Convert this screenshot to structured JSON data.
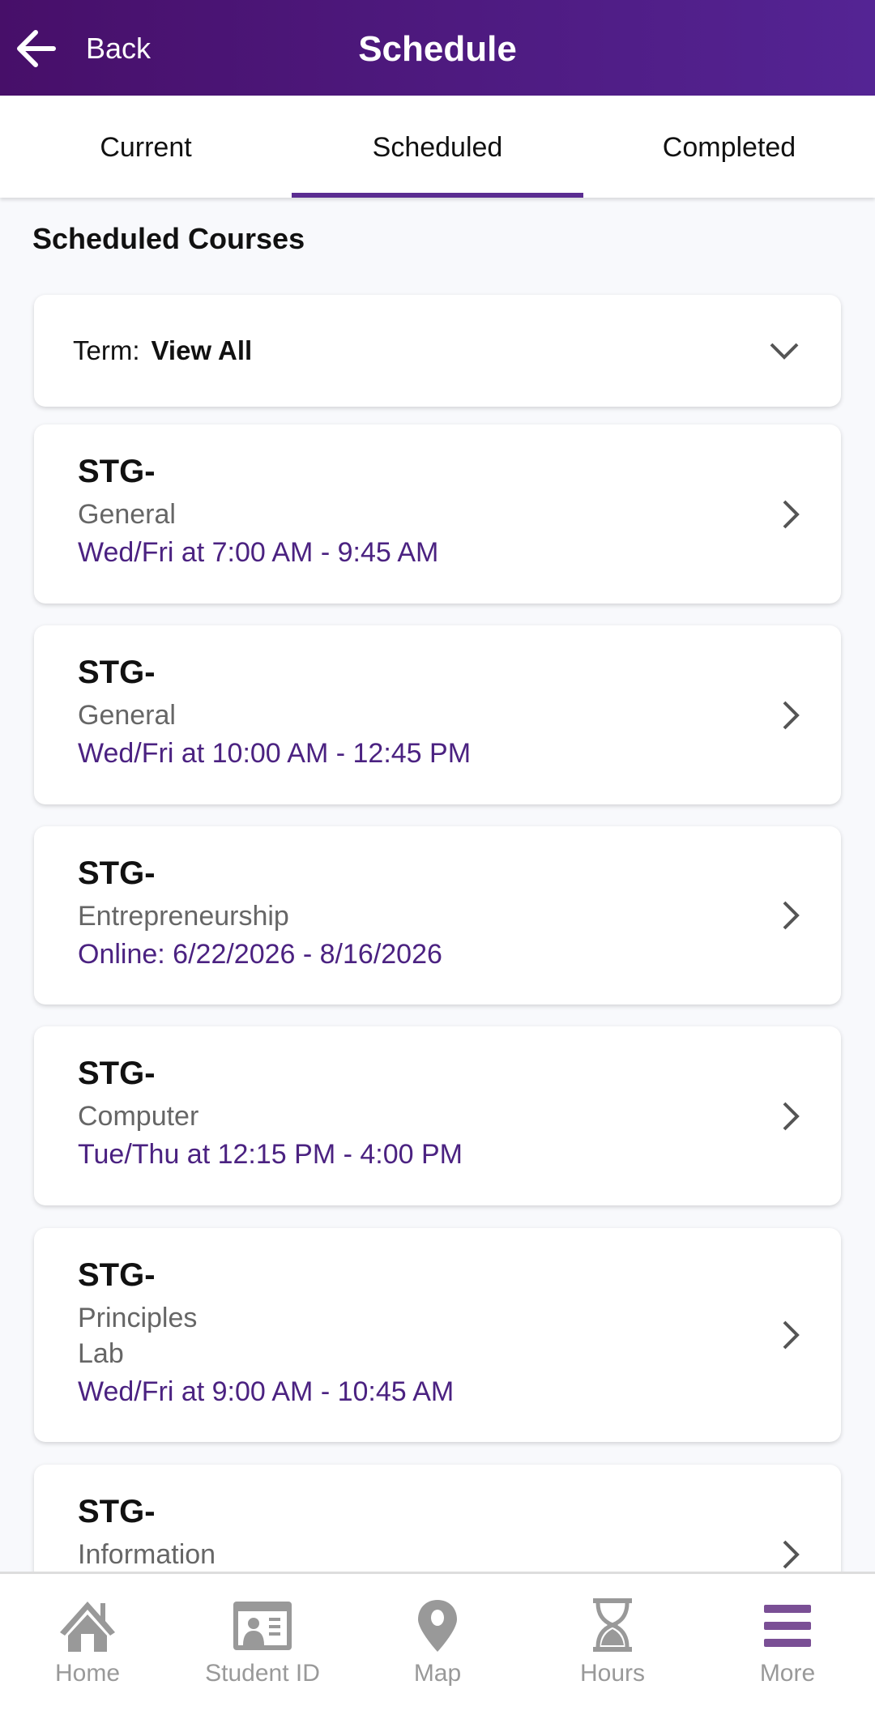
{
  "header": {
    "back_label": "Back",
    "title": "Schedule"
  },
  "tabs": [
    {
      "label": "Current"
    },
    {
      "label": "Scheduled",
      "active": true
    },
    {
      "label": "Completed"
    }
  ],
  "section_title": "Scheduled Courses",
  "term_filter": {
    "label": "Term:",
    "value": "View All"
  },
  "courses": [
    {
      "code": "STG-",
      "name": "General",
      "time": "Wed/Fri at 7:00 AM - 9:45 AM"
    },
    {
      "code": "STG-",
      "name": "General",
      "time": "Wed/Fri at 10:00 AM - 12:45 PM"
    },
    {
      "code": "STG-",
      "name": "Entrepreneurship",
      "time": "Online: 6/22/2026 - 8/16/2026"
    },
    {
      "code": "STG-",
      "name": "Computer",
      "time": "Tue/Thu at 12:15 PM - 4:00 PM"
    },
    {
      "code": "STG-",
      "name": "Principles",
      "name2": "Lab",
      "time": "Wed/Fri at 9:00 AM - 10:45 AM"
    },
    {
      "code": "STG-",
      "name": "Information",
      "time": ""
    }
  ],
  "bottom_nav": [
    {
      "label": "Home",
      "icon": "home-icon"
    },
    {
      "label": "Student ID",
      "icon": "id-card-icon"
    },
    {
      "label": "Map",
      "icon": "map-pin-icon"
    },
    {
      "label": "Hours",
      "icon": "hourglass-icon"
    },
    {
      "label": "More",
      "icon": "menu-icon",
      "active": true
    }
  ],
  "colors": {
    "header_start": "#470f69",
    "header_end": "#542494",
    "accent": "#5b2d91",
    "time_text": "#4b2281",
    "nav_inactive": "#999999",
    "nav_active": "#7a4f95"
  }
}
